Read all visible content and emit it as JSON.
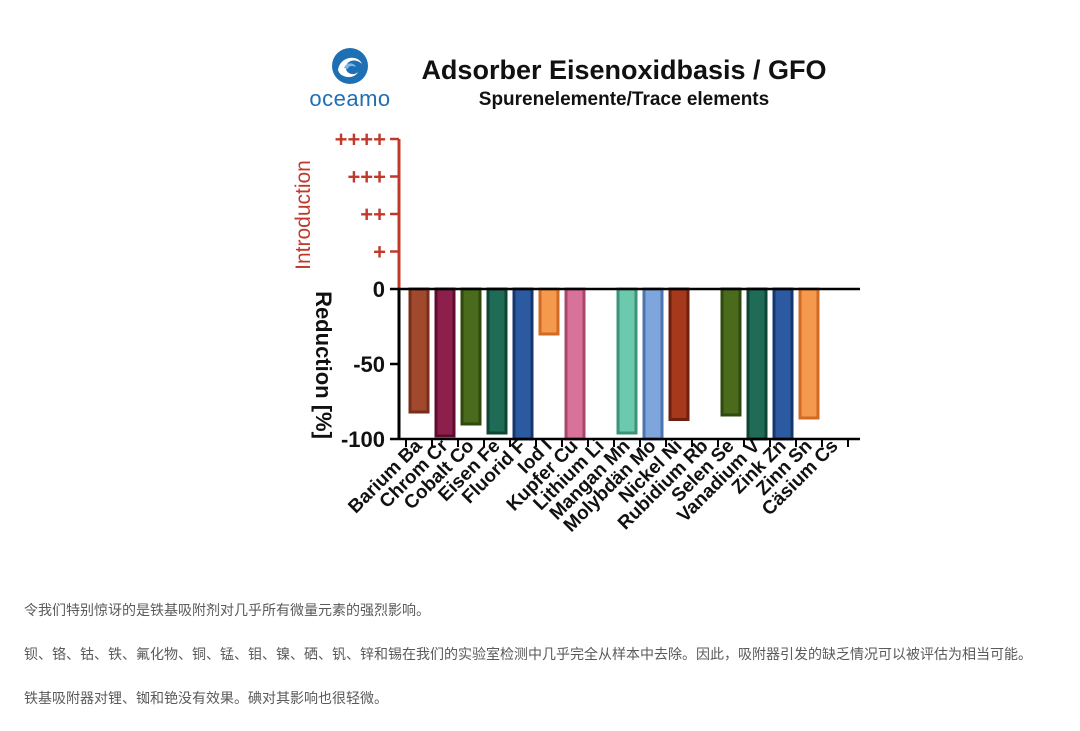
{
  "logo": {
    "brand": "oceamo"
  },
  "chart_data": {
    "type": "bar",
    "title": "Adsorber Eisenoxidbasis / GFO",
    "subtitle": "Spurenelemente/Trace elements",
    "ylabel_reduction": "Reduction [%]",
    "ylabel_introduction": "Introduction",
    "ylim": [
      -100,
      100
    ],
    "y_ticks": [
      {
        "value": 0,
        "label": "0"
      },
      {
        "value": -50,
        "label": "-50"
      },
      {
        "value": -100,
        "label": "-100"
      }
    ],
    "introduction_ticks": [
      {
        "value": 25,
        "label": "+"
      },
      {
        "value": 50,
        "label": "++"
      },
      {
        "value": 75,
        "label": "+++"
      },
      {
        "value": 100,
        "label": "++++"
      }
    ],
    "categories": [
      "Barium Ba",
      "Chrom Cr",
      "Cobalt Co",
      "Eisen Fe",
      "Fluorid F",
      "Iod I",
      "Kupfer Cu",
      "Lithium Li",
      "Mangan Mn",
      "Molybdän Mo",
      "Nickel Ni",
      "Rubidium Rb",
      "Selen Se",
      "Vanadium V",
      "Zink Zn",
      "Zinn Sn",
      "Cäsium Cs"
    ],
    "values": [
      -82,
      -98,
      -90,
      -96,
      -100,
      -30,
      -100,
      0,
      -96,
      -100,
      -87,
      0,
      -84,
      -100,
      -100,
      -86,
      0
    ],
    "colors": [
      "#a0492d",
      "#8c1f4c",
      "#4a6b1c",
      "#1f6b55",
      "#2c5aa0",
      "#f59a4c",
      "#d8729a",
      "#ffffff",
      "#6cc9ad",
      "#7ea6dc",
      "#a6391b",
      "#ffffff",
      "#4a6b1c",
      "#1f6b55",
      "#2c5aa0",
      "#f59a4c",
      "#ffffff"
    ],
    "border_colors": [
      "#7a2e1a",
      "#5e0c2e",
      "#2f4a0c",
      "#0f4534",
      "#16376e",
      "#d06a24",
      "#a8466c",
      "#ffffff",
      "#3a9478",
      "#4c74ad",
      "#6e200c",
      "#ffffff",
      "#2f4a0c",
      "#0f4534",
      "#16376e",
      "#d06a24",
      "#ffffff"
    ],
    "axis_color": "#000000",
    "introduction_color": "#c0392b"
  },
  "paragraphs": [
    "令我们特别惊讶的是铁基吸附剂对几乎所有微量元素的强烈影响。",
    "钡、铬、钴、铁、氟化物、铜、锰、钼、镍、硒、钒、锌和锡在我们的实验室检测中几乎完全从样本中去除。因此，吸附器引发的缺乏情况可以被评估为相当可能。",
    "铁基吸附器对锂、铷和铯没有效果。碘对其影响也很轻微。"
  ]
}
